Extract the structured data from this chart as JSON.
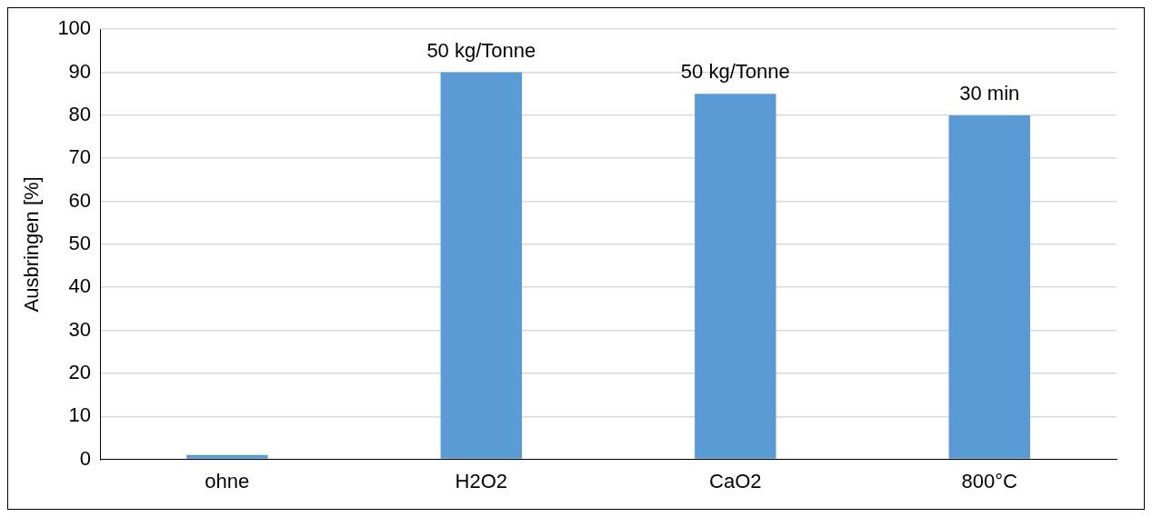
{
  "chart_data": {
    "type": "bar",
    "ylabel": "Ausbringen [%]",
    "categories": [
      "ohne",
      "H2O2",
      "CaO2",
      "800°C"
    ],
    "values": [
      1,
      90,
      85,
      80
    ],
    "color": "#5b9bd5",
    "ylim": [
      0,
      100
    ],
    "yticks": [
      0,
      10,
      20,
      30,
      40,
      50,
      60,
      70,
      80,
      90,
      100
    ],
    "grid": "y",
    "legend": false,
    "annotations": [
      {
        "text": "50 kg/Tonne",
        "x": "H2O2",
        "y": 90
      },
      {
        "text": "50 kg/Tonne",
        "x": "CaO2",
        "y": 85
      },
      {
        "text": "30 min",
        "x": "800°C",
        "y": 80
      }
    ]
  }
}
